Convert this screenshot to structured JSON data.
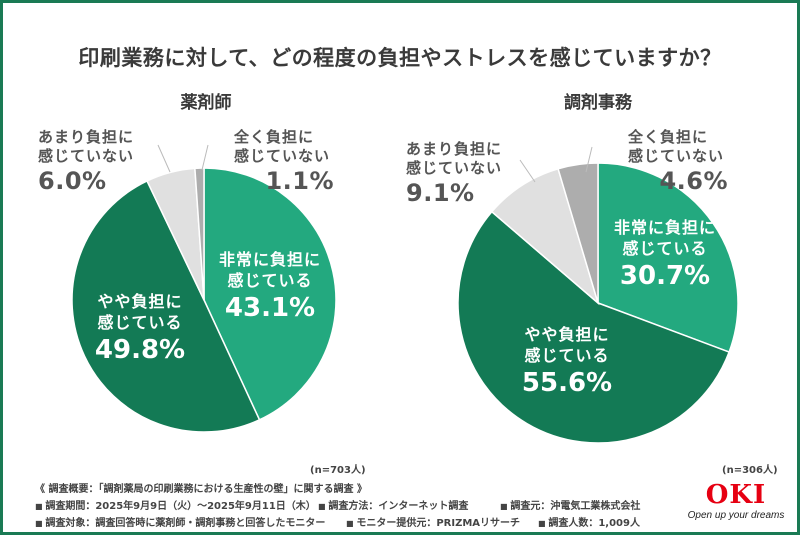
{
  "title": "印刷業務に対して、どの程度の負担やストレスを感じていますか？",
  "colors": {
    "very": "#23a97f",
    "somewhat": "#137a55",
    "not_much": "#e0e0e0",
    "not_at_all": "#adadad",
    "frame": "#1a7a54",
    "logo": "#e60012"
  },
  "chart_data": [
    {
      "type": "pie",
      "title": "薬剤師",
      "n_label": "(n=703人)",
      "slices": [
        {
          "label": "非常に負担に感じている",
          "line1": "非常に負担に",
          "line2": "感じている",
          "value": 43.1,
          "display": "43.1%",
          "color_key": "very"
        },
        {
          "label": "やや負担に感じている",
          "line1": "やや負担に",
          "line2": "感じている",
          "value": 49.8,
          "display": "49.8%",
          "color_key": "somewhat"
        },
        {
          "label": "あまり負担に感じていない",
          "line1": "あまり負担に",
          "line2": "感じていない",
          "value": 6.0,
          "display": "6.0%",
          "color_key": "not_much"
        },
        {
          "label": "全く負担に感じていない",
          "line1": "全く負担に",
          "line2": "感じていない",
          "value": 1.1,
          "display": "1.1%",
          "color_key": "not_at_all"
        }
      ]
    },
    {
      "type": "pie",
      "title": "調剤事務",
      "n_label": "(n=306人)",
      "slices": [
        {
          "label": "非常に負担に感じている",
          "line1": "非常に負担に",
          "line2": "感じている",
          "value": 30.7,
          "display": "30.7%",
          "color_key": "very"
        },
        {
          "label": "やや負担に感じている",
          "line1": "やや負担に",
          "line2": "感じている",
          "value": 55.6,
          "display": "55.6%",
          "color_key": "somewhat"
        },
        {
          "label": "あまり負担に感じていない",
          "line1": "あまり負担に",
          "line2": "感じていない",
          "value": 9.1,
          "display": "9.1%",
          "color_key": "not_much"
        },
        {
          "label": "全く負担に感じていない",
          "line1": "全く負担に",
          "line2": "感じていない",
          "value": 4.6,
          "display": "4.6%",
          "color_key": "not_at_all"
        }
      ]
    }
  ],
  "footer": {
    "overview": "《 調査概要：「調剤薬局の印刷業務における生産性の壁」に関する調査 》",
    "period": "調査期間：2025年9月9日（火）～2025年9月11日（木）",
    "method": "調査方法：インターネット調査",
    "source": "調査元：沖電気工業株式会社",
    "target": "調査対象：調査回答時に薬剤師・調剤事務と回答したモニター",
    "provider": "モニター提供元：PRIZMAリサーチ",
    "count": "調査人数：1,009人"
  },
  "logo": {
    "name": "OKI",
    "tagline": "Open up your dreams"
  }
}
